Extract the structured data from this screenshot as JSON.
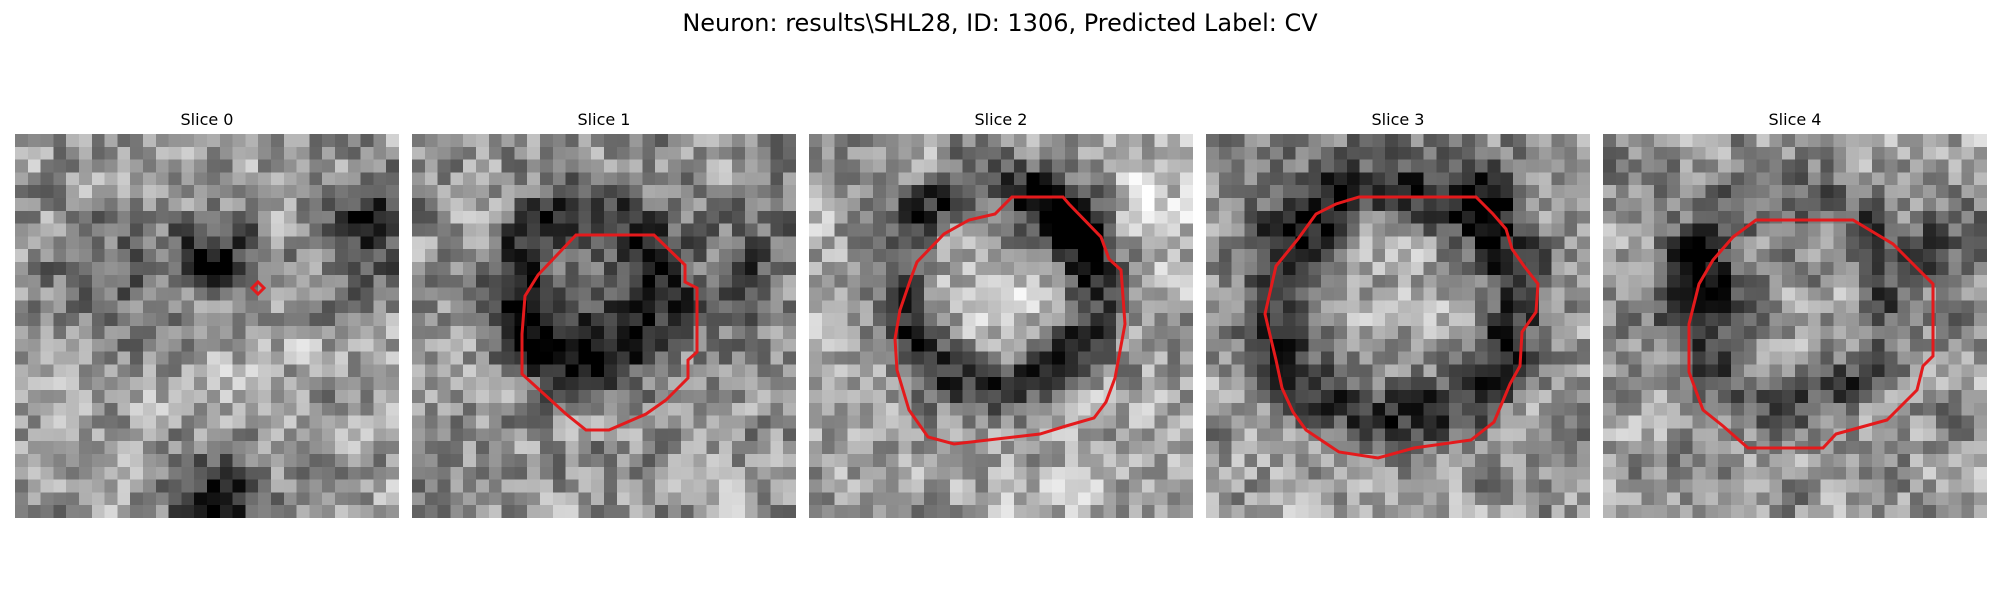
{
  "figure": {
    "title": "Neuron: results\\SHL28, ID: 1306, Predicted Label: CV",
    "contour_color": "#e41a1c"
  },
  "slices": [
    {
      "title": "Slice 0"
    },
    {
      "title": "Slice 1"
    },
    {
      "title": "Slice 2"
    },
    {
      "title": "Slice 3"
    },
    {
      "title": "Slice 4"
    }
  ]
}
